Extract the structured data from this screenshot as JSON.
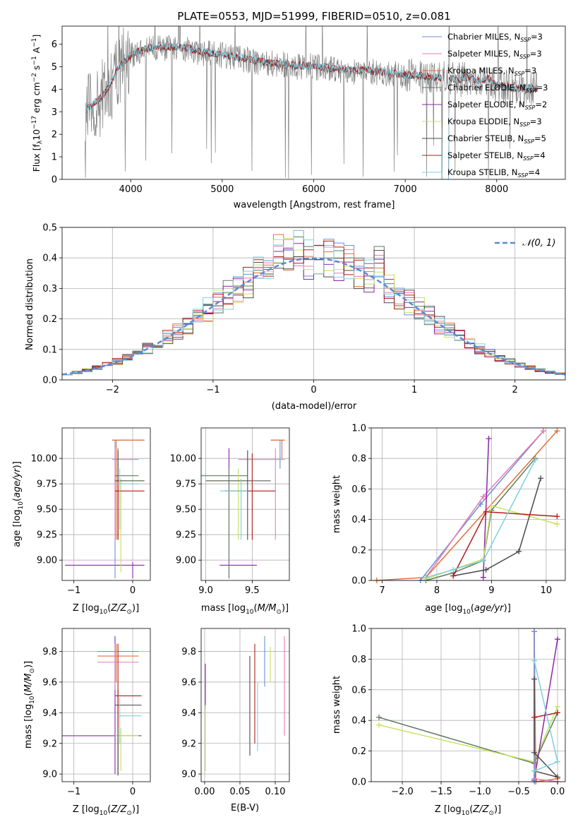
{
  "colors": {
    "Chabrier MILES": "#6a8fd6",
    "Salpeter MILES": "#e87cb4",
    "Kroupa MILES": "#e0703a",
    "Chabrier ELODIE": "#5e7a62",
    "Salpeter ELODIE": "#8e24aa",
    "Kroupa ELODIE": "#c8e25a",
    "Chabrier STELIB": "#4a4a4a",
    "Salpeter STELIB": "#b01c1c",
    "Kroupa STELIB": "#7fd0e0",
    "data": "#808080"
  },
  "chart_data": [
    {
      "id": "spectrum",
      "type": "line",
      "title": "PLATE=0553, MJD=51999, FIBERID=0510, z=0.081",
      "xlabel": "wavelength [Angstrom, rest frame]",
      "ylabel": "Flux [f_λ 10^-17 erg cm^-2 s^-1 A^-1]",
      "xlim": [
        3250,
        8750
      ],
      "ylim": [
        0,
        6.8
      ],
      "xticks": [
        4000,
        5000,
        6000,
        7000,
        8000
      ],
      "yticks": [
        0,
        1,
        2,
        3,
        4,
        5,
        6
      ],
      "legend": "right",
      "legend_entries": [
        {
          "name": "Chabrier MILES",
          "nssp": "3"
        },
        {
          "name": "Salpeter MILES",
          "nssp": "3"
        },
        {
          "name": "Kroupa MILES",
          "nssp": "3"
        },
        {
          "name": "Chabrier ELODIE",
          "nssp": "3"
        },
        {
          "name": "Salpeter ELODIE",
          "nssp": "2"
        },
        {
          "name": "Kroupa ELODIE",
          "nssp": "3"
        },
        {
          "name": "Chabrier STELIB",
          "nssp": "5"
        },
        {
          "name": "Salpeter STELIB",
          "nssp": "4"
        },
        {
          "name": "Kroupa STELIB",
          "nssp": "4"
        }
      ],
      "continuum": {
        "x": [
          3520,
          3620,
          3700,
          3780,
          3860,
          3950,
          4050,
          4200,
          4400,
          4600,
          4800,
          5000,
          5200,
          5400,
          5600,
          5800,
          6000,
          6200,
          6400,
          6600,
          6800,
          7000,
          7200,
          7400,
          7600,
          7700,
          7800,
          7900,
          8000,
          8200,
          8400
        ],
        "y": [
          3.1,
          3.4,
          3.7,
          4.2,
          4.9,
          5.3,
          5.6,
          5.8,
          5.85,
          5.8,
          5.6,
          5.5,
          5.35,
          5.2,
          5.1,
          5.0,
          5.0,
          4.9,
          4.8,
          4.8,
          4.7,
          4.6,
          4.55,
          4.45,
          4.4,
          4.5,
          4.3,
          4.45,
          4.15,
          4.0,
          4.0
        ]
      }
    },
    {
      "id": "residuals",
      "type": "histogram",
      "xlabel": "(data-model)/error",
      "ylabel": "Normed distribution",
      "xlim": [
        -2.5,
        2.5
      ],
      "ylim": [
        0,
        0.5
      ],
      "xticks": [
        -2,
        -1,
        0,
        1,
        2
      ],
      "yticks": [
        0,
        0.1,
        0.2,
        0.3,
        0.4,
        0.5
      ],
      "legend": "top-right",
      "legend_label": "𝒩(0, 1)",
      "bin_edges_start": -2.5,
      "bin_width": 0.1
    },
    {
      "id": "age-vs-Z",
      "type": "errorbar",
      "xlabel": "Z [log10(Z/Z⊙)]",
      "ylabel": "age  [log10(age/yr)]",
      "xlim": [
        -1.2,
        0.3
      ],
      "ylim": [
        8.8,
        10.3
      ],
      "xticks": [
        -1,
        0
      ],
      "yticks": [
        9.0,
        9.25,
        9.5,
        9.75,
        10.0
      ]
    },
    {
      "id": "age-vs-mass",
      "type": "errorbar",
      "xlabel": "mass [log10(M/M⊙)]",
      "xlim": [
        8.95,
        9.9
      ],
      "ylim": [
        8.8,
        10.3
      ],
      "xticks": [
        9.0,
        9.5
      ],
      "yticks": [
        9.0,
        9.25,
        9.5,
        9.75,
        10.0
      ]
    },
    {
      "id": "massweight-vs-age",
      "type": "line",
      "xlabel": "age  [log10(age/yr)]",
      "ylabel": "mass weight",
      "xlim": [
        6.8,
        10.35
      ],
      "ylim": [
        0,
        1.0
      ],
      "xticks": [
        7,
        8,
        9,
        10
      ],
      "yticks": [
        0,
        0.2,
        0.4,
        0.6,
        0.8,
        1.0
      ],
      "series": [
        {
          "key": "Chabrier MILES",
          "x": [
            7.7,
            8.8,
            9.95
          ],
          "y": [
            0.0,
            0.5,
            0.98
          ]
        },
        {
          "key": "Salpeter MILES",
          "x": [
            7.8,
            8.85,
            9.95
          ],
          "y": [
            0.02,
            0.55,
            0.98
          ]
        },
        {
          "key": "Kroupa MILES",
          "x": [
            6.9,
            7.8,
            10.2
          ],
          "y": [
            0.0,
            0.02,
            0.98
          ]
        },
        {
          "key": "Chabrier ELODIE",
          "x": [
            7.8,
            8.3,
            8.85,
            9.0,
            9.8
          ],
          "y": [
            0.0,
            0.05,
            0.13,
            0.46,
            0.8
          ]
        },
        {
          "key": "Salpeter ELODIE",
          "x": [
            8.85,
            8.95
          ],
          "y": [
            0.02,
            0.93
          ]
        },
        {
          "key": "Kroupa ELODIE",
          "x": [
            7.8,
            8.85,
            9.0,
            10.2
          ],
          "y": [
            0.01,
            0.14,
            0.49,
            0.37
          ]
        },
        {
          "key": "Chabrier STELIB",
          "x": [
            8.3,
            8.9,
            9.5,
            9.9
          ],
          "y": [
            0.03,
            0.07,
            0.19,
            0.67
          ]
        },
        {
          "key": "Salpeter STELIB",
          "x": [
            8.3,
            8.9,
            10.2
          ],
          "y": [
            0.03,
            0.45,
            0.42
          ]
        },
        {
          "key": "Kroupa STELIB",
          "x": [
            7.8,
            8.3,
            8.85,
            9.8
          ],
          "y": [
            0.02,
            0.07,
            0.13,
            0.79
          ]
        }
      ]
    },
    {
      "id": "mass-vs-Z",
      "type": "errorbar",
      "xlabel": "Z [log10(Z/Z⊙)]",
      "ylabel": "mass [log10(M/M⊙)]",
      "xlim": [
        -1.2,
        0.3
      ],
      "ylim": [
        8.95,
        9.95
      ],
      "xticks": [
        -1,
        0
      ],
      "yticks": [
        9.0,
        9.2,
        9.4,
        9.6,
        9.8
      ]
    },
    {
      "id": "mass-vs-EBV",
      "type": "errorbar",
      "xlabel": "E(B-V)",
      "xlim": [
        -0.005,
        0.12
      ],
      "ylim": [
        8.95,
        9.95
      ],
      "xticks": [
        0.0,
        0.05,
        0.1
      ],
      "yticks": [
        9.0,
        9.2,
        9.4,
        9.6,
        9.8
      ]
    },
    {
      "id": "massweight-vs-Z",
      "type": "line",
      "xlabel": "Z [log10(Z/Z⊙)]",
      "ylabel": "mass weight",
      "xlim": [
        -2.4,
        0.1
      ],
      "ylim": [
        0,
        1.0
      ],
      "xticks": [
        -2.0,
        -1.5,
        -1.0,
        -0.5,
        0.0
      ],
      "yticks": [
        0,
        0.2,
        0.4,
        0.6,
        0.8,
        1.0
      ],
      "series": [
        {
          "key": "Chabrier ELODIE",
          "x": [
            -2.3,
            -0.3,
            -0.0
          ],
          "y": [
            0.42,
            0.12,
            0.45
          ]
        },
        {
          "key": "Kroupa ELODIE",
          "x": [
            -2.3,
            -0.3,
            0.0
          ],
          "y": [
            0.37,
            0.13,
            0.49
          ]
        },
        {
          "key": "Salpeter ELODIE",
          "x": [
            -0.3,
            0.0
          ],
          "y": [
            0.01,
            0.93
          ]
        },
        {
          "key": "Kroupa MILES",
          "x": [
            -0.3,
            -0.28,
            0.0
          ],
          "y": [
            0.98,
            0.0,
            0.02
          ]
        },
        {
          "key": "Salpeter MILES",
          "x": [
            -0.3,
            -0.3,
            0.0
          ],
          "y": [
            0.98,
            0.02,
            0.0
          ]
        },
        {
          "key": "Chabrier MILES",
          "x": [
            -0.3,
            -0.3
          ],
          "y": [
            0.0,
            0.98
          ]
        },
        {
          "key": "Chabrier STELIB",
          "x": [
            -0.3,
            -0.3,
            0.0,
            -0.3
          ],
          "y": [
            0.67,
            0.19,
            0.03,
            0.07
          ]
        },
        {
          "key": "Salpeter STELIB",
          "x": [
            -0.3,
            0.0
          ],
          "y": [
            0.42,
            0.45
          ]
        },
        {
          "key": "Kroupa STELIB",
          "x": [
            -0.3,
            0.0,
            -0.3
          ],
          "y": [
            0.79,
            0.13,
            0.07
          ]
        }
      ]
    }
  ]
}
